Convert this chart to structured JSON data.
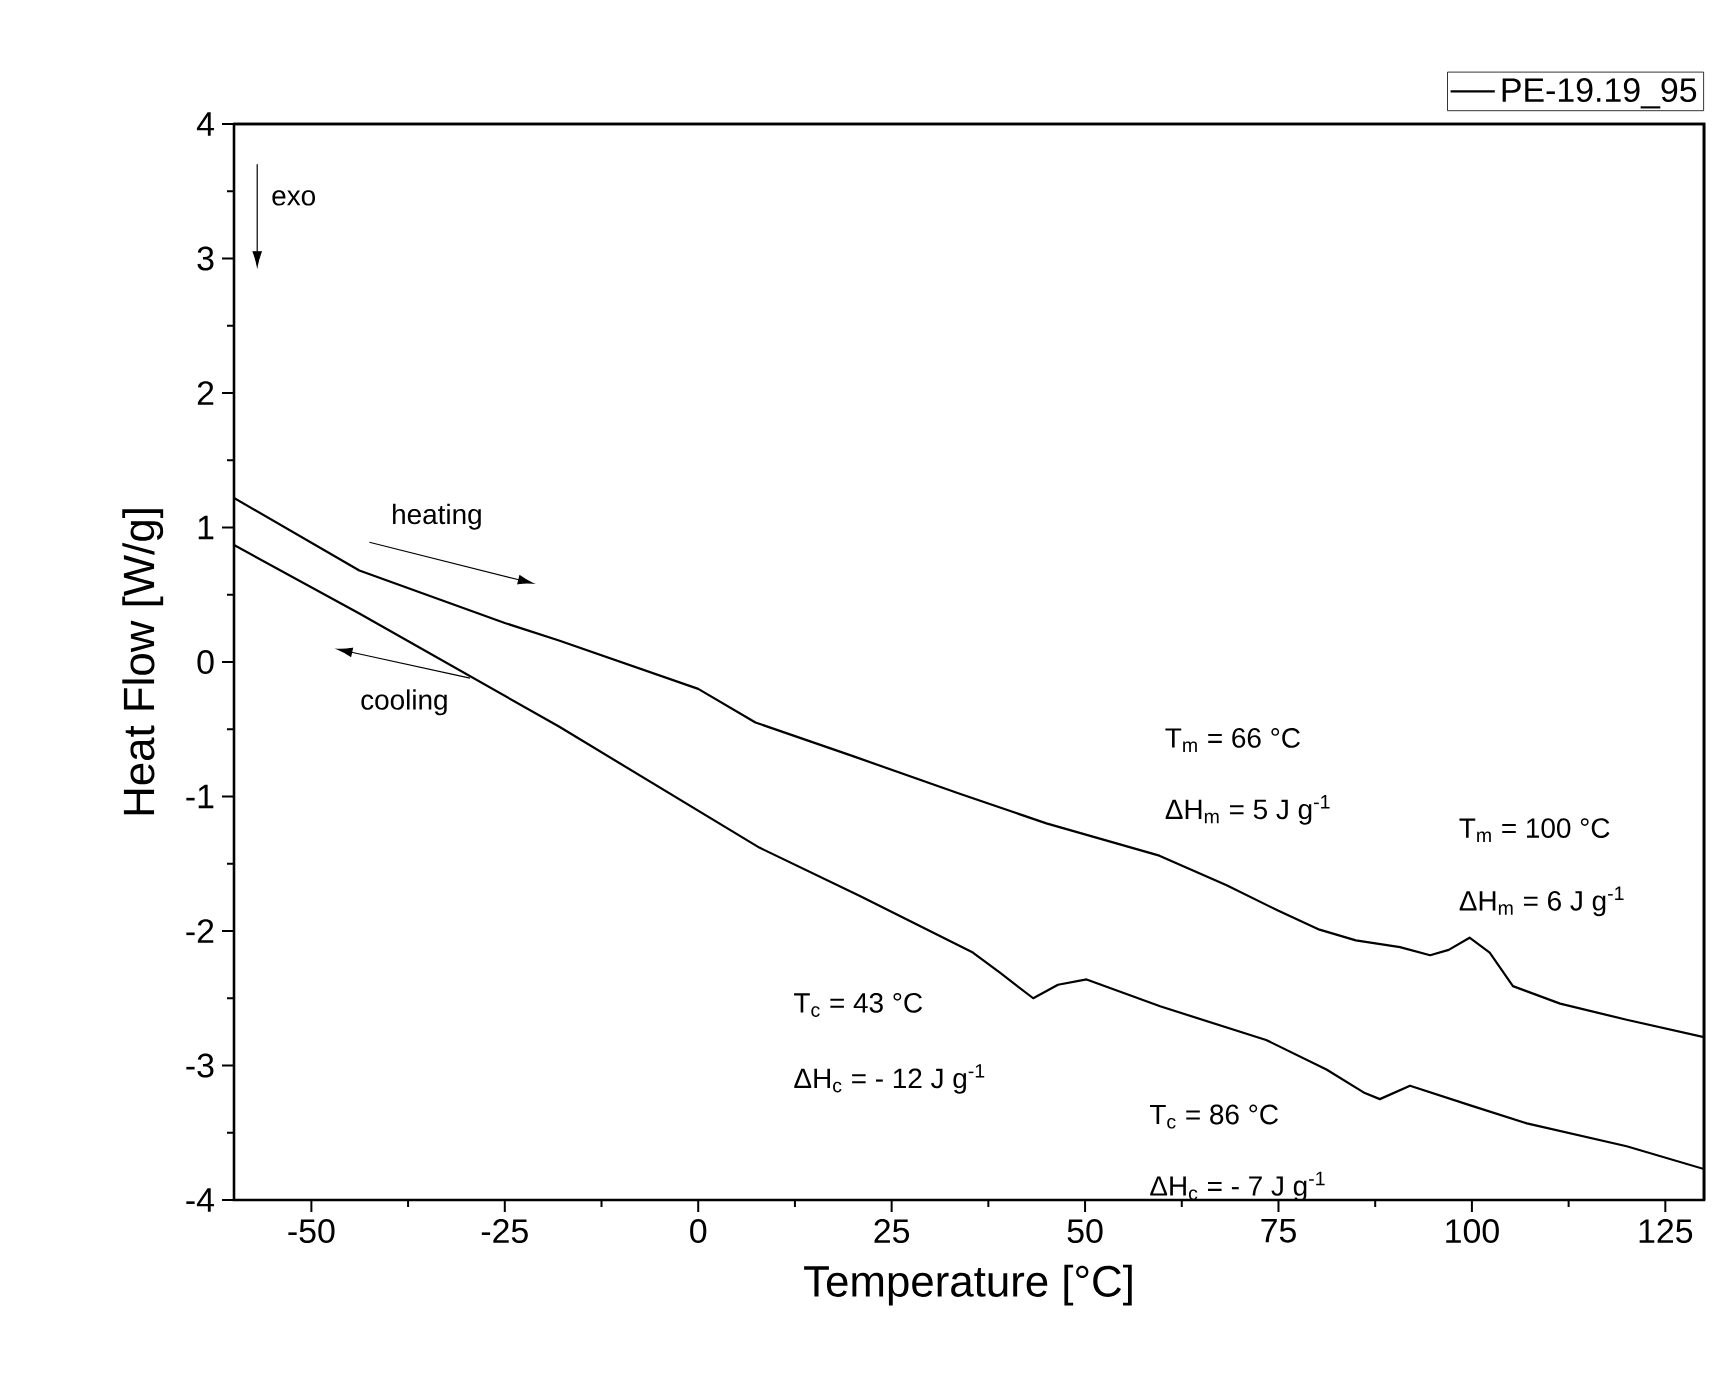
{
  "chart_data": {
    "type": "line",
    "xlabel": "Temperature [°C]",
    "ylabel": "Heat Flow [W/g]",
    "xlim": [
      -60,
      130
    ],
    "ylim": [
      -4,
      4
    ],
    "xticks": [
      -50,
      -25,
      0,
      25,
      50,
      75,
      100,
      125
    ],
    "yticks": [
      -4,
      -3,
      -2,
      -1,
      0,
      1,
      2,
      3,
      4
    ],
    "legend": "top right",
    "line_style": "solid",
    "marker": "none",
    "series": [
      {
        "name": "PE-19.19_95",
        "color": "#000000",
        "x": [
          -60,
          -43.8,
          -25,
          -18,
          0,
          7.4,
          20,
          33.8,
          45,
          59.6,
          68.3,
          75,
          80.3,
          85,
          90.7,
          94.6,
          97,
          99.7,
          102.3,
          105.3,
          111.4,
          120,
          130
        ],
        "values": [
          1.22,
          0.68,
          0.29,
          0.16,
          -0.2,
          -0.45,
          -0.7,
          -0.98,
          -1.2,
          -1.44,
          -1.66,
          -1.85,
          -1.99,
          -2.07,
          -2.12,
          -2.18,
          -2.14,
          -2.05,
          -2.16,
          -2.41,
          -2.54,
          -2.66,
          -2.79
        ]
      },
      {
        "color": "#000000",
        "x": [
          -60,
          -43.8,
          -18,
          7.9,
          20.9,
          35.5,
          39,
          43.3,
          46.5,
          50.2,
          59.7,
          73.4,
          81.2,
          86,
          88.1,
          92,
          100,
          107.1,
          120,
          130
        ],
        "values": [
          0.87,
          0.36,
          -0.48,
          -1.38,
          -1.74,
          -2.16,
          -2.31,
          -2.5,
          -2.4,
          -2.36,
          -2.56,
          -2.81,
          -3.03,
          -3.2,
          -3.25,
          -3.15,
          -3.3,
          -3.43,
          -3.6,
          -3.77
        ]
      }
    ],
    "annotations": [
      "exo",
      "heating",
      "cooling",
      "T$_{m}$ = 66 °C",
      "ΔH$_{m}$ = 5 J g$^{-1}$",
      "T$_{m}$ = 100 °C",
      "ΔH$_{m}$ = 6 J g$^{-1}$",
      "T$_{c}$ = 43 °C",
      "ΔH$_{c}$ = - 12 J g$^{-1}$",
      "T$_{c}$ = 86 °C",
      "ΔH$_{c}$ = - 7 J g$^{-1}$"
    ]
  }
}
